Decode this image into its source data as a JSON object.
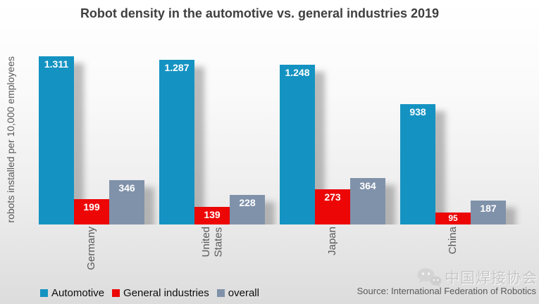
{
  "title": "Robot density in the automotive vs. general industries 2019",
  "y_axis_label": "robots installed per 10,000 employees",
  "chart_data": {
    "type": "bar",
    "categories": [
      "Germany",
      "United States",
      "Japan",
      "China"
    ],
    "display_labels": [
      "Germany",
      "United\nStates",
      "Japan",
      "China"
    ],
    "series": [
      {
        "name": "Automotive",
        "color": "#1493c2",
        "values": [
          1311,
          1287,
          1248,
          938
        ],
        "labels": [
          "1.311",
          "1.287",
          "1.248",
          "938"
        ]
      },
      {
        "name": "General industries",
        "color": "#ec0606",
        "values": [
          199,
          139,
          273,
          95
        ],
        "labels": [
          "199",
          "139",
          "273",
          "95"
        ]
      },
      {
        "name": "overall",
        "color": "#8092aa",
        "values": [
          346,
          228,
          364,
          187
        ],
        "labels": [
          "346",
          "228",
          "364",
          "187"
        ]
      }
    ],
    "ylim": [
      0,
      1450
    ],
    "grid": false,
    "legend_position": "bottom",
    "value_label_color": "#ffffff",
    "title_color": "#3f3f3f",
    "axis_text_color": "#595959"
  },
  "source": "Source: International Federation of Robotics",
  "watermark": {
    "text": "中国焊接协会",
    "icon": "wechat-icon"
  }
}
